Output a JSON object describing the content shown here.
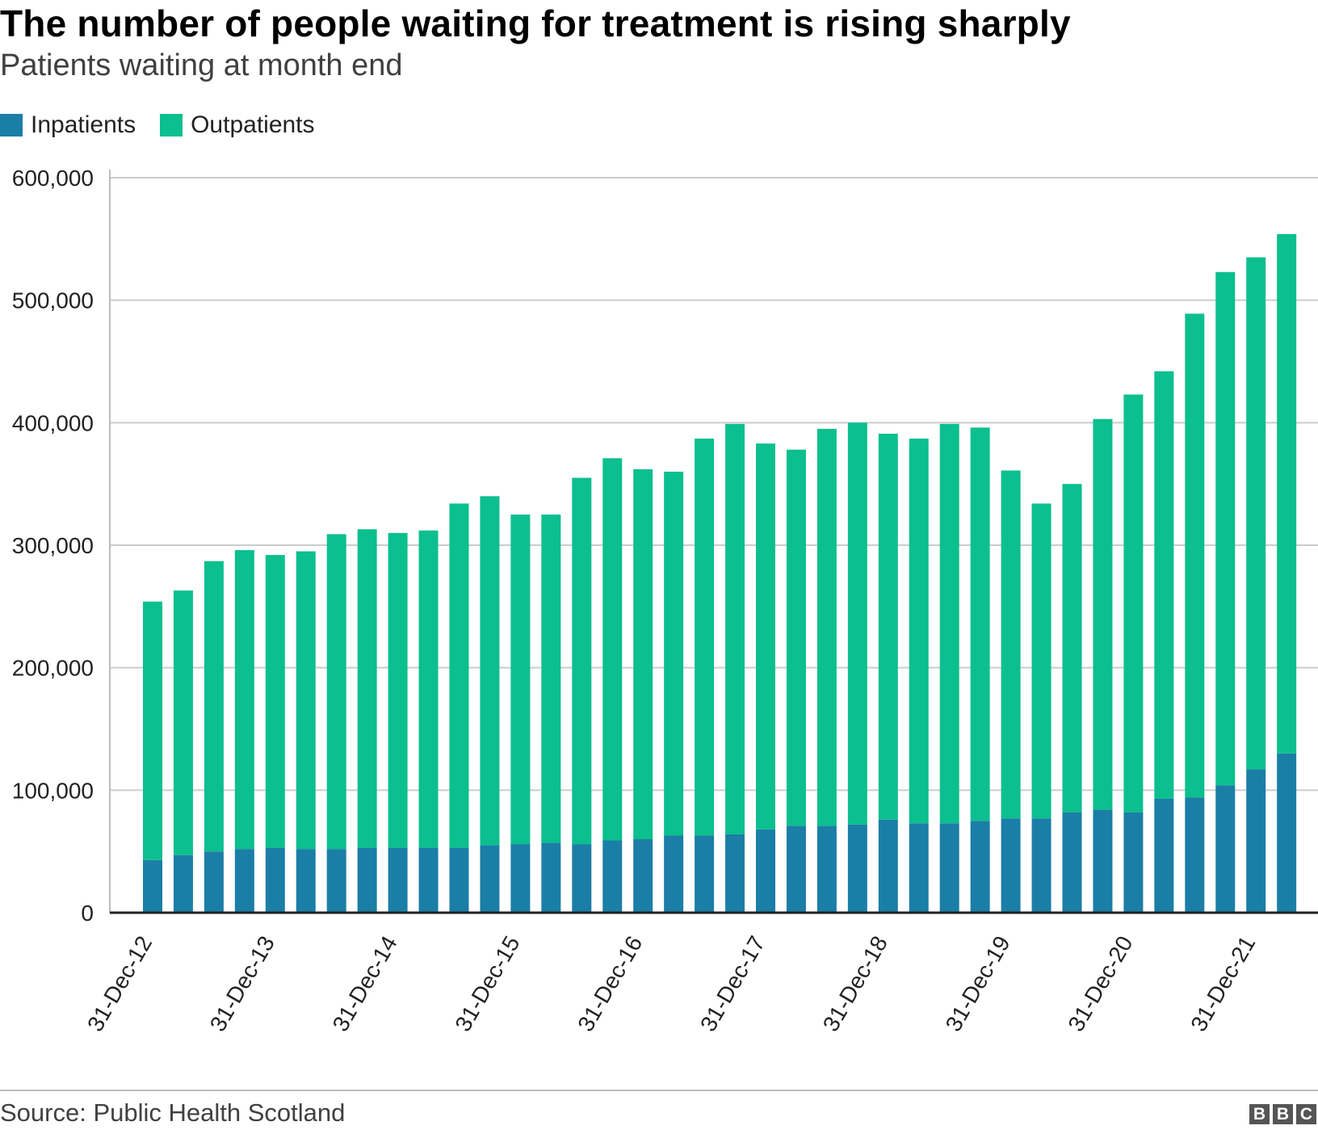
{
  "header": {
    "title": "The number of people waiting for treatment is rising sharply",
    "subtitle": "Patients waiting at month end"
  },
  "legend": {
    "items": [
      {
        "label": "Inpatients",
        "color": "#1b7ea6"
      },
      {
        "label": "Outpatients",
        "color": "#0bbf8e"
      }
    ]
  },
  "footer": {
    "source": "Source: Public Health Scotland",
    "logo": [
      "B",
      "B",
      "C"
    ]
  },
  "chart_data": {
    "type": "bar",
    "stacked": true,
    "title": "The number of people waiting for treatment is rising sharply",
    "subtitle": "Patients waiting at month end",
    "xlabel": "",
    "ylabel": "",
    "ylim": [
      0,
      600000
    ],
    "yticks": [
      0,
      100000,
      200000,
      300000,
      400000,
      500000,
      600000
    ],
    "ytick_labels": [
      "0",
      "100,000",
      "200,000",
      "300,000",
      "400,000",
      "500,000",
      "600,000"
    ],
    "grid": true,
    "legend_position": "top-left",
    "xtick_labels": [
      {
        "index": 0,
        "label": "31-Dec-12"
      },
      {
        "index": 4,
        "label": "31-Dec-13"
      },
      {
        "index": 8,
        "label": "31-Dec-14"
      },
      {
        "index": 12,
        "label": "31-Dec-15"
      },
      {
        "index": 16,
        "label": "31-Dec-16"
      },
      {
        "index": 20,
        "label": "31-Dec-17"
      },
      {
        "index": 24,
        "label": "31-Dec-18"
      },
      {
        "index": 28,
        "label": "31-Dec-19"
      },
      {
        "index": 32,
        "label": "31-Dec-20"
      },
      {
        "index": 36,
        "label": "31-Dec-21"
      }
    ],
    "categories": [
      "31-Dec-12",
      "31-Mar-13",
      "30-Jun-13",
      "30-Sep-13",
      "31-Dec-13",
      "31-Mar-14",
      "30-Jun-14",
      "30-Sep-14",
      "31-Dec-14",
      "31-Mar-15",
      "30-Jun-15",
      "30-Sep-15",
      "31-Dec-15",
      "31-Mar-16",
      "30-Jun-16",
      "30-Sep-16",
      "31-Dec-16",
      "31-Mar-17",
      "30-Jun-17",
      "30-Sep-17",
      "31-Dec-17",
      "31-Mar-18",
      "30-Jun-18",
      "30-Sep-18",
      "31-Dec-18",
      "31-Mar-19",
      "30-Jun-19",
      "30-Sep-19",
      "31-Dec-19",
      "31-Mar-20",
      "30-Jun-20",
      "30-Sep-20",
      "31-Dec-20",
      "31-Mar-21",
      "30-Jun-21",
      "30-Sep-21",
      "31-Dec-21",
      "31-Mar-22"
    ],
    "series": [
      {
        "name": "Inpatients",
        "color": "#1b7ea6",
        "values": [
          43000,
          47000,
          50000,
          52000,
          53000,
          52000,
          52000,
          53000,
          53000,
          53000,
          53000,
          55000,
          56000,
          57000,
          56000,
          59000,
          60000,
          63000,
          63000,
          64000,
          68000,
          71000,
          71000,
          72000,
          76000,
          73000,
          73000,
          75000,
          77000,
          77000,
          82000,
          84000,
          82000,
          93000,
          94000,
          104000,
          117000,
          130000
        ]
      },
      {
        "name": "Outpatients",
        "color": "#0bbf8e",
        "values": [
          211000,
          216000,
          237000,
          244000,
          239000,
          243000,
          257000,
          260000,
          257000,
          259000,
          281000,
          285000,
          269000,
          268000,
          299000,
          312000,
          302000,
          297000,
          324000,
          335000,
          315000,
          307000,
          324000,
          328000,
          315000,
          314000,
          326000,
          321000,
          284000,
          257000,
          268000,
          319000,
          341000,
          349000,
          395000,
          419000,
          418000,
          424000
        ]
      }
    ],
    "totals": [
      254000,
      263000,
      287000,
      296000,
      292000,
      295000,
      309000,
      313000,
      310000,
      312000,
      334000,
      340000,
      325000,
      325000,
      355000,
      371000,
      362000,
      360000,
      387000,
      399000,
      383000,
      378000,
      395000,
      400000,
      391000,
      387000,
      399000,
      396000,
      361000,
      334000,
      350000,
      403000,
      423000,
      442000,
      489000,
      523000,
      535000,
      554000
    ]
  }
}
